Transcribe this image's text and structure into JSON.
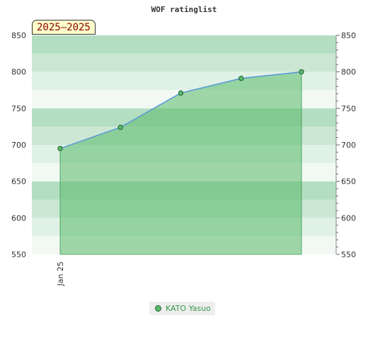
{
  "chart_data": {
    "type": "area",
    "title": "WOF ratinglist",
    "period_label": "2025–2025",
    "xlabel": "",
    "ylabel": "",
    "ylim": [
      550,
      850
    ],
    "yticks": [
      550,
      600,
      650,
      700,
      750,
      800,
      850
    ],
    "x_tick_labels": [
      "Jan 25"
    ],
    "series": [
      {
        "name": "KATO Yasuo",
        "values": [
          695,
          724,
          771,
          791,
          800
        ]
      }
    ],
    "grid": true,
    "legend_position": "bottom-center",
    "colors": {
      "line": "#5b9bd5",
      "fill": "#5aba6a",
      "marker_fill": "#5aba6a",
      "marker_stroke": "#1f5f2f",
      "band_colors": [
        "#b3dec2",
        "#cbe7d4",
        "#e0f1e6",
        "#f2f9f4"
      ]
    }
  }
}
